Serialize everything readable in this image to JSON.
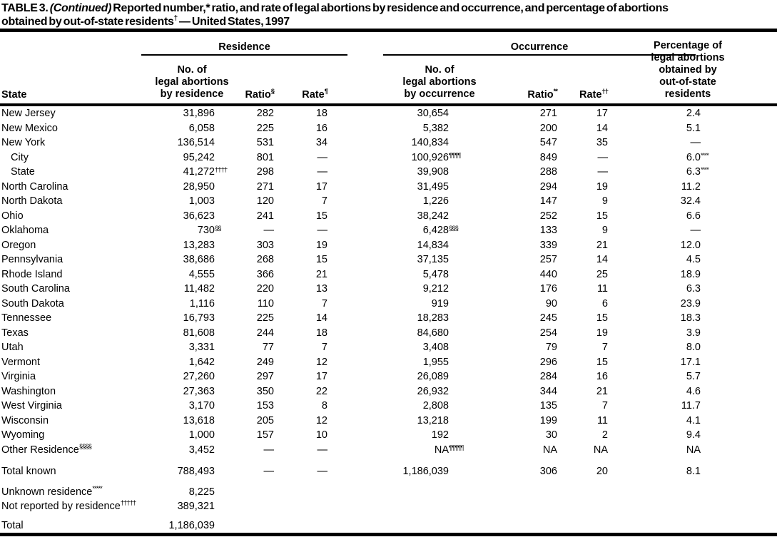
{
  "colors": {
    "ink": "#000000",
    "paper": "#ffffff"
  },
  "title": {
    "line1_a": "TABLE 3. ",
    "line1_em": "(Continued)",
    "line1_b": " Reported number,* ratio, and rate of legal abortions by residence and occurrence, and percentage of abortions",
    "line2_a": "obtained by out-of-state residents",
    "line2_sup": "†",
    "line2_b": " — United States, 1997"
  },
  "table": {
    "header": {
      "state": "State",
      "groups": {
        "residence": "Residence",
        "occurrence": "Occurrence"
      },
      "res_no": "No. of\nlegal abortions\nby residence",
      "res_ratio": "Ratio",
      "res_ratio_sup": "§",
      "res_rate": "Rate",
      "res_rate_sup": "¶",
      "occ_no": "No. of\nlegal abortions\nby occurrence",
      "occ_ratio": "Ratio",
      "occ_ratio_sup": "**",
      "occ_rate": "Rate",
      "occ_rate_sup": "††",
      "pct": "Percentage of\nlegal abortions\nobtained by\nout-of-state\nresidents"
    },
    "rows": [
      {
        "state": "New Jersey",
        "res_no": "31,896",
        "res_ratio": "282",
        "res_rate": "18",
        "occ_no": "30,654",
        "occ_ratio": "271",
        "occ_rate": "17",
        "pct": "2.4"
      },
      {
        "state": "New Mexico",
        "res_no": "6,058",
        "res_ratio": "225",
        "res_rate": "16",
        "occ_no": "5,382",
        "occ_ratio": "200",
        "occ_rate": "14",
        "pct": "5.1"
      },
      {
        "state": "New York",
        "res_no": "136,514",
        "res_ratio": "531",
        "res_rate": "34",
        "occ_no": "140,834",
        "occ_ratio": "547",
        "occ_rate": "35",
        "pct": "—"
      },
      {
        "state": "City",
        "indent": true,
        "res_no": "95,242",
        "res_ratio": "801",
        "res_rate": "—",
        "occ_no": "100,926",
        "occ_no_sup": "¶¶¶¶",
        "occ_ratio": "849",
        "occ_rate": "—",
        "pct": "6.0",
        "pct_sup": "****"
      },
      {
        "state": "State",
        "indent": true,
        "res_no": "41,272",
        "res_no_sup": "††††",
        "res_ratio": "298",
        "res_rate": "—",
        "occ_no": "39,908",
        "occ_ratio": "288",
        "occ_rate": "—",
        "pct": "6.3",
        "pct_sup": "****"
      },
      {
        "state": "North Carolina",
        "res_no": "28,950",
        "res_ratio": "271",
        "res_rate": "17",
        "occ_no": "31,495",
        "occ_ratio": "294",
        "occ_rate": "19",
        "pct": "11.2"
      },
      {
        "state": "North Dakota",
        "res_no": "1,003",
        "res_ratio": "120",
        "res_rate": "7",
        "occ_no": "1,226",
        "occ_ratio": "147",
        "occ_rate": "9",
        "pct": "32.4"
      },
      {
        "state": "Ohio",
        "res_no": "36,623",
        "res_ratio": "241",
        "res_rate": "15",
        "occ_no": "38,242",
        "occ_ratio": "252",
        "occ_rate": "15",
        "pct": "6.6"
      },
      {
        "state": "Oklahoma",
        "res_no": "730",
        "res_no_sup": "§§",
        "res_ratio": "—",
        "res_rate": "—",
        "occ_no": "6,428",
        "occ_no_sup": "§§§",
        "occ_ratio": "133",
        "occ_rate": "9",
        "pct": "—"
      },
      {
        "state": "Oregon",
        "res_no": "13,283",
        "res_ratio": "303",
        "res_rate": "19",
        "occ_no": "14,834",
        "occ_ratio": "339",
        "occ_rate": "21",
        "pct": "12.0"
      },
      {
        "state": "Pennsylvania",
        "res_no": "38,686",
        "res_ratio": "268",
        "res_rate": "15",
        "occ_no": "37,135",
        "occ_ratio": "257",
        "occ_rate": "14",
        "pct": "4.5"
      },
      {
        "state": "Rhode Island",
        "res_no": "4,555",
        "res_ratio": "366",
        "res_rate": "21",
        "occ_no": "5,478",
        "occ_ratio": "440",
        "occ_rate": "25",
        "pct": "18.9"
      },
      {
        "state": "South Carolina",
        "res_no": "11,482",
        "res_ratio": "220",
        "res_rate": "13",
        "occ_no": "9,212",
        "occ_ratio": "176",
        "occ_rate": "11",
        "pct": "6.3"
      },
      {
        "state": "South Dakota",
        "res_no": "1,116",
        "res_ratio": "110",
        "res_rate": "7",
        "occ_no": "919",
        "occ_ratio": "90",
        "occ_rate": "6",
        "pct": "23.9"
      },
      {
        "state": "Tennessee",
        "res_no": "16,793",
        "res_ratio": "225",
        "res_rate": "14",
        "occ_no": "18,283",
        "occ_ratio": "245",
        "occ_rate": "15",
        "pct": "18.3"
      },
      {
        "state": "Texas",
        "res_no": "81,608",
        "res_ratio": "244",
        "res_rate": "18",
        "occ_no": "84,680",
        "occ_ratio": "254",
        "occ_rate": "19",
        "pct": "3.9"
      },
      {
        "state": "Utah",
        "res_no": "3,331",
        "res_ratio": "77",
        "res_rate": "7",
        "occ_no": "3,408",
        "occ_ratio": "79",
        "occ_rate": "7",
        "pct": "8.0"
      },
      {
        "state": "Vermont",
        "res_no": "1,642",
        "res_ratio": "249",
        "res_rate": "12",
        "occ_no": "1,955",
        "occ_ratio": "296",
        "occ_rate": "15",
        "pct": "17.1"
      },
      {
        "state": "Virginia",
        "res_no": "27,260",
        "res_ratio": "297",
        "res_rate": "17",
        "occ_no": "26,089",
        "occ_ratio": "284",
        "occ_rate": "16",
        "pct": "5.7"
      },
      {
        "state": "Washington",
        "res_no": "27,363",
        "res_ratio": "350",
        "res_rate": "22",
        "occ_no": "26,932",
        "occ_ratio": "344",
        "occ_rate": "21",
        "pct": "4.6"
      },
      {
        "state": "West Virginia",
        "res_no": "3,170",
        "res_ratio": "153",
        "res_rate": "8",
        "occ_no": "2,808",
        "occ_ratio": "135",
        "occ_rate": "7",
        "pct": "11.7"
      },
      {
        "state": "Wisconsin",
        "res_no": "13,618",
        "res_ratio": "205",
        "res_rate": "12",
        "occ_no": "13,218",
        "occ_ratio": "199",
        "occ_rate": "11",
        "pct": "4.1"
      },
      {
        "state": "Wyoming",
        "res_no": "1,000",
        "res_ratio": "157",
        "res_rate": "10",
        "occ_no": "192",
        "occ_ratio": "30",
        "occ_rate": "2",
        "pct": "9.4"
      },
      {
        "state": "Other Residence",
        "state_sup": "§§§§",
        "res_no": "3,452",
        "res_ratio": "—",
        "res_rate": "—",
        "occ_no": "NA",
        "occ_no_sup": "¶¶¶¶¶",
        "occ_ratio": "NA",
        "occ_rate": "NA",
        "pct": "NA"
      },
      {
        "state": "Total known",
        "cls": "total-known",
        "res_no": "788,493",
        "res_ratio": "—",
        "res_rate": "—",
        "occ_no": "1,186,039",
        "occ_ratio": "306",
        "occ_rate": "20",
        "pct": "8.1"
      },
      {
        "state": "Unknown residence",
        "state_sup": "*****",
        "cls": "footer-first",
        "res_no": "8,225"
      },
      {
        "state": "Not reported by residence",
        "state_sup": "†††††",
        "res_no": "389,321"
      },
      {
        "state": "Total",
        "cls": "total-row",
        "res_no": "1,186,039"
      }
    ]
  }
}
